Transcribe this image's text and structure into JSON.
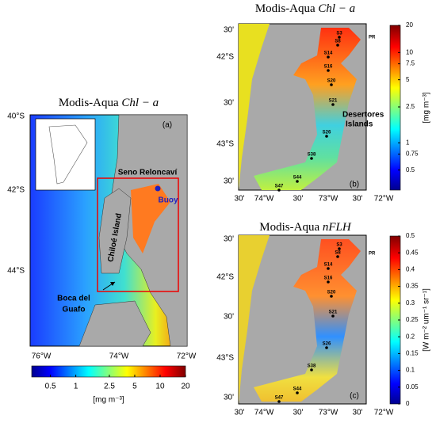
{
  "panels": [
    {
      "label": "(a)",
      "title": {
        "prefix": "Modis-Aqua",
        "variable": "Chl − a"
      },
      "lat_ticks": [
        "40°S",
        "42°S",
        "44°S"
      ],
      "lon_ticks": [
        "76°W",
        "74°W",
        "72°W"
      ],
      "annotations": {
        "sound": "Seno Reloncaví",
        "buoy": "Buoy",
        "island": "Chiloé Island",
        "mouth": [
          "Boca del",
          "Guafo"
        ]
      }
    },
    {
      "label": "(b)",
      "title": {
        "prefix": "Modis-Aqua",
        "variable": "Chl − a"
      },
      "lat_ticks": [
        "30'",
        "42°S",
        "30'",
        "43°S",
        "30'"
      ],
      "lon_ticks": [
        "30'",
        "74°W",
        "30'",
        "73°W",
        "30'",
        "72°W"
      ],
      "annotations": {
        "islands": [
          "Desertores",
          "Islands"
        ],
        "port": "PR"
      },
      "stations": [
        "S3",
        "S8",
        "S14",
        "S16",
        "S20",
        "S21",
        "S26",
        "S38",
        "S44",
        "S47"
      ]
    },
    {
      "label": "(c)",
      "title": {
        "prefix": "Modis-Aqua",
        "variable": "nFLH"
      },
      "lat_ticks": [
        "30'",
        "42°S",
        "30'",
        "43°S",
        "30'"
      ],
      "lon_ticks": [
        "30'",
        "74°W",
        "30'",
        "73°W",
        "30'",
        "72°W"
      ],
      "annotations": {
        "port": "PR"
      },
      "stations": [
        "S3",
        "S8",
        "S14",
        "S16",
        "S20",
        "S21",
        "S26",
        "S38",
        "S44",
        "S47"
      ]
    }
  ],
  "colorbars": [
    {
      "unit": "[mg m⁻³]",
      "scale": "log",
      "lim": [
        0.3,
        20
      ],
      "ticks": [
        0.5,
        1,
        2.5,
        5,
        10,
        20
      ]
    },
    {
      "unit": "[mg m⁻³]",
      "scale": "log",
      "lim": [
        0.3,
        20
      ],
      "ticks": [
        0.5,
        0.75,
        1,
        2.5,
        5,
        7.5,
        10,
        20
      ]
    },
    {
      "unit": "[W m⁻² um⁻¹ sr⁻¹]",
      "scale": "linear",
      "lim": [
        0,
        0.5
      ],
      "ticks": [
        0,
        0.05,
        0.1,
        0.15,
        0.2,
        0.25,
        0.3,
        0.35,
        0.4,
        0.45,
        0.5
      ]
    }
  ]
}
